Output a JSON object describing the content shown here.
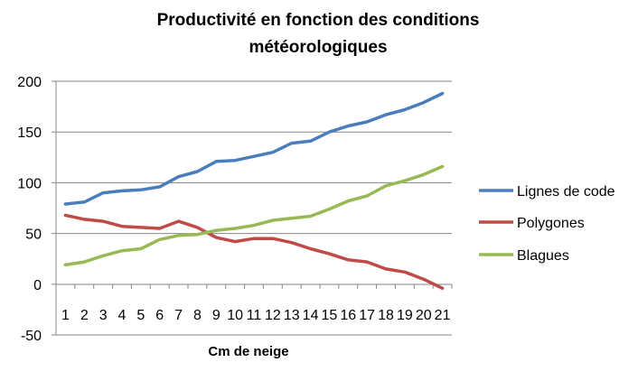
{
  "chart_data": {
    "type": "line",
    "title": [
      "Productivité en fonction des conditions",
      "météorologiques"
    ],
    "xlabel": "Cm de neige",
    "ylabel": "",
    "ylim": [
      -50,
      200
    ],
    "yticks": [
      -50,
      0,
      50,
      100,
      150,
      200
    ],
    "categories": [
      "1",
      "2",
      "3",
      "4",
      "5",
      "6",
      "7",
      "8",
      "9",
      "10",
      "11",
      "12",
      "13",
      "14",
      "15",
      "16",
      "17",
      "18",
      "19",
      "20",
      "21"
    ],
    "grid": "horizontal",
    "legend": "right",
    "series": [
      {
        "name": "Lignes de code",
        "color": "#4a7ebb",
        "values": [
          79,
          81,
          90,
          92,
          93,
          96,
          106,
          111,
          121,
          122,
          126,
          130,
          139,
          141,
          150,
          156,
          160,
          167,
          172,
          179,
          188
        ]
      },
      {
        "name": "Polygones",
        "color": "#be4b48",
        "values": [
          68,
          64,
          62,
          57,
          56,
          55,
          62,
          56,
          46,
          42,
          45,
          45,
          41,
          35,
          30,
          24,
          22,
          15,
          12,
          5,
          -4
        ]
      },
      {
        "name": "Blagues",
        "color": "#98b954",
        "values": [
          19,
          22,
          28,
          33,
          35,
          44,
          48,
          49,
          53,
          55,
          58,
          63,
          65,
          67,
          74,
          82,
          87,
          97,
          102,
          108,
          116
        ]
      }
    ]
  }
}
